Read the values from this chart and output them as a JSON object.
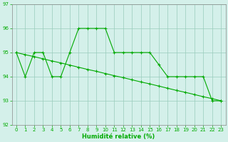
{
  "line1_x": [
    0,
    1,
    2,
    3,
    4,
    5,
    6,
    7,
    8,
    9,
    10,
    11,
    12,
    13,
    14,
    15,
    16,
    17,
    18,
    19,
    20,
    21,
    22,
    23
  ],
  "line1_y": [
    95,
    94,
    95,
    95,
    94,
    94,
    95,
    96,
    96,
    96,
    96,
    95,
    95,
    95,
    95,
    95,
    94.5,
    94,
    94,
    94,
    94,
    94,
    93,
    93
  ],
  "line2_x": [
    0,
    1,
    2,
    3,
    4,
    5,
    6,
    7,
    8,
    9,
    10,
    11,
    12,
    13,
    14,
    15,
    16,
    17,
    18,
    19,
    20,
    21,
    22,
    23
  ],
  "line2_y": [
    95,
    94.91,
    94.83,
    94.74,
    94.65,
    94.57,
    94.48,
    94.39,
    94.3,
    94.22,
    94.13,
    94.04,
    93.96,
    93.87,
    93.78,
    93.7,
    93.61,
    93.52,
    93.43,
    93.35,
    93.26,
    93.17,
    93.09,
    93.0
  ],
  "line_color": "#00aa00",
  "bg_color": "#d4f0ea",
  "grid_color": "#99ccbb",
  "xlabel": "Humidité relative (%)",
  "ylim": [
    92,
    97
  ],
  "xlim": [
    -0.5,
    23.5
  ],
  "yticks": [
    92,
    93,
    94,
    95,
    96,
    97
  ],
  "xticks": [
    0,
    1,
    2,
    3,
    4,
    5,
    6,
    7,
    8,
    9,
    10,
    11,
    12,
    13,
    14,
    15,
    16,
    17,
    18,
    19,
    20,
    21,
    22,
    23
  ],
  "tick_fontsize": 5.0,
  "xlabel_fontsize": 6.0,
  "linewidth": 0.8,
  "markersize": 3.5
}
